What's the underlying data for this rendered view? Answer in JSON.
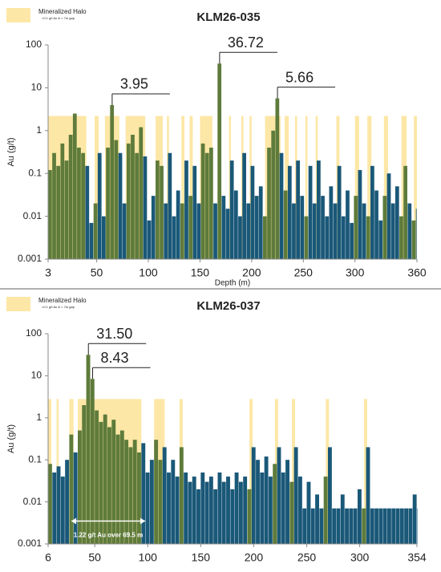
{
  "chart_data": [
    {
      "type": "bar",
      "title": "KLM26-035",
      "y_label": "Au (g/t)",
      "x_label": "Depth (m)",
      "log_y": true,
      "color": "#1a5878",
      "halo": {
        "name": "Mineralized Halo",
        "note": ">0.1 g/t Au & < 7m gap",
        "color": "#fde7a6",
        "bar_color": "#5e7b3b",
        "top": 2.2,
        "intervals": [
          [
            3,
            40
          ],
          [
            48,
            52
          ],
          [
            58,
            72
          ],
          [
            78,
            97
          ],
          [
            107,
            114
          ],
          [
            118,
            120
          ],
          [
            132,
            135
          ],
          [
            140,
            143
          ],
          [
            150,
            162
          ],
          [
            167,
            170
          ],
          [
            178,
            180
          ],
          [
            190,
            192
          ],
          [
            198,
            200
          ],
          [
            213,
            228
          ],
          [
            232,
            236
          ],
          [
            242,
            244
          ],
          [
            252,
            254
          ],
          [
            262,
            264
          ],
          [
            282,
            285
          ],
          [
            300,
            304
          ],
          [
            312,
            316
          ],
          [
            328,
            332
          ],
          [
            345,
            350
          ],
          [
            357,
            360
          ]
        ]
      },
      "xlim": [
        3,
        360
      ],
      "xticks": [
        3,
        50,
        100,
        150,
        200,
        250,
        300,
        360
      ],
      "ylim": [
        0.001,
        100
      ],
      "yticks": [
        0.001,
        0.01,
        0.1,
        1,
        10,
        100
      ],
      "x": [
        3,
        7,
        11,
        15,
        19,
        23,
        27,
        31,
        35,
        39,
        43,
        47,
        51,
        55,
        59,
        63,
        67,
        71,
        75,
        79,
        83,
        87,
        91,
        95,
        99,
        103,
        107,
        111,
        115,
        119,
        123,
        127,
        131,
        135,
        139,
        143,
        147,
        151,
        155,
        159,
        163,
        167,
        171,
        175,
        179,
        183,
        187,
        191,
        195,
        199,
        203,
        207,
        211,
        215,
        219,
        223,
        227,
        231,
        235,
        239,
        243,
        247,
        251,
        255,
        259,
        263,
        267,
        271,
        275,
        279,
        283,
        287,
        291,
        295,
        299,
        303,
        307,
        311,
        315,
        319,
        323,
        327,
        331,
        335,
        339,
        343,
        347,
        351,
        355,
        359
      ],
      "values": [
        0.12,
        0.3,
        0.15,
        0.5,
        0.2,
        0.8,
        2.5,
        0.4,
        0.3,
        0.15,
        0.007,
        0.02,
        0.3,
        0.01,
        0.4,
        3.95,
        0.6,
        0.3,
        0.02,
        0.5,
        0.8,
        0.3,
        1.2,
        0.25,
        0.008,
        0.03,
        0.2,
        0.15,
        0.02,
        0.3,
        0.01,
        0.04,
        0.02,
        0.2,
        0.03,
        0.15,
        0.02,
        0.5,
        0.3,
        0.4,
        0.02,
        36.72,
        0.03,
        0.015,
        0.2,
        0.04,
        0.01,
        0.3,
        0.02,
        0.15,
        0.03,
        0.05,
        0.01,
        0.4,
        1.0,
        5.66,
        0.3,
        0.04,
        0.15,
        0.02,
        0.2,
        0.03,
        0.01,
        0.15,
        0.02,
        0.2,
        0.03,
        0.01,
        0.05,
        0.02,
        0.15,
        0.01,
        0.04,
        0.007,
        0.03,
        0.12,
        0.02,
        0.01,
        0.15,
        0.04,
        0.008,
        0.03,
        0.1,
        0.02,
        0.05,
        0.01,
        0.15,
        0.02,
        0.008,
        0.015
      ],
      "value_labels": [
        null,
        null,
        null,
        null,
        null,
        null,
        null,
        null,
        null,
        null,
        null,
        null,
        null,
        null,
        null,
        "3.95",
        null,
        null,
        null,
        null,
        null,
        null,
        null,
        null,
        null,
        null,
        null,
        null,
        null,
        null,
        null,
        null,
        null,
        null,
        null,
        null,
        null,
        null,
        null,
        null,
        null,
        "36.72",
        null,
        null,
        null,
        null,
        null,
        null,
        null,
        null,
        null,
        null,
        null,
        null,
        null,
        "5.66",
        null,
        null,
        null,
        null,
        null,
        null,
        null,
        null,
        null,
        null,
        null,
        null,
        null,
        null,
        null,
        null,
        null,
        null,
        null,
        null,
        null,
        null,
        null,
        null,
        null,
        null,
        null,
        null,
        null,
        null,
        null,
        null,
        null,
        null
      ]
    },
    {
      "type": "bar",
      "title": "KLM26-037",
      "y_label": "Au (g/t)",
      "log_y": true,
      "color": "#1a5878",
      "halo": {
        "name": "Mineralized Halo",
        "note": ">0.1 g/t Au & < 7m gap",
        "color": "#fde7a6",
        "bar_color": "#5e7b3b",
        "top": 2.8,
        "intervals": [
          [
            6,
            9
          ],
          [
            14,
            16
          ],
          [
            26,
            30
          ],
          [
            34,
            94
          ],
          [
            106,
            116
          ],
          [
            130,
            133
          ],
          [
            196,
            199
          ],
          [
            220,
            223
          ],
          [
            236,
            239
          ],
          [
            268,
            271
          ],
          [
            304,
            307
          ]
        ]
      },
      "xlim": [
        6,
        354
      ],
      "xticks": [
        6,
        50,
        100,
        150,
        200,
        250,
        300,
        354
      ],
      "ylim": [
        0.001,
        100
      ],
      "yticks": [
        0.001,
        0.01,
        0.1,
        1,
        10,
        100
      ],
      "x": [
        6,
        10,
        14,
        18,
        22,
        26,
        30,
        34,
        38,
        42,
        46,
        50,
        54,
        58,
        62,
        66,
        70,
        74,
        78,
        82,
        86,
        90,
        94,
        98,
        102,
        106,
        110,
        114,
        118,
        122,
        126,
        130,
        134,
        138,
        142,
        146,
        150,
        154,
        158,
        162,
        166,
        170,
        174,
        178,
        182,
        186,
        190,
        194,
        198,
        202,
        206,
        210,
        214,
        218,
        222,
        226,
        230,
        234,
        238,
        242,
        246,
        250,
        254,
        258,
        262,
        266,
        270,
        274,
        278,
        282,
        286,
        290,
        294,
        298,
        302,
        306,
        310,
        314,
        318,
        322,
        326,
        330,
        334,
        338,
        342,
        346,
        350,
        354
      ],
      "values": [
        0.08,
        0.05,
        0.07,
        0.04,
        0.1,
        0.4,
        0.15,
        0.5,
        2.0,
        31.5,
        8.43,
        1.5,
        0.8,
        1.2,
        0.6,
        0.9,
        0.4,
        0.5,
        0.3,
        0.2,
        0.3,
        0.15,
        0.25,
        0.05,
        0.1,
        0.3,
        0.1,
        0.2,
        0.05,
        0.1,
        0.04,
        0.2,
        0.05,
        0.03,
        0.04,
        0.02,
        0.05,
        0.03,
        0.04,
        0.02,
        0.05,
        0.03,
        0.04,
        0.02,
        0.05,
        0.03,
        0.04,
        0.02,
        0.2,
        0.1,
        0.05,
        0.12,
        0.04,
        0.08,
        0.2,
        0.05,
        0.1,
        0.03,
        0.2,
        0.04,
        0.007,
        0.03,
        0.007,
        0.015,
        0.007,
        0.04,
        0.2,
        0.007,
        0.007,
        0.015,
        0.007,
        0.007,
        0.007,
        0.02,
        0.007,
        0.2,
        0.007,
        0.007,
        0.007,
        0.007,
        0.007,
        0.007,
        0.007,
        0.007,
        0.007,
        0.007,
        0.015,
        0.007
      ],
      "value_labels": [
        null,
        null,
        null,
        null,
        null,
        null,
        null,
        null,
        null,
        "31.50",
        "8.43",
        null,
        null,
        null,
        null,
        null,
        null,
        null,
        null,
        null,
        null,
        null,
        null,
        null,
        null,
        null,
        null,
        null,
        null,
        null,
        null,
        null,
        null,
        null,
        null,
        null,
        null,
        null,
        null,
        null,
        null,
        null,
        null,
        null,
        null,
        null,
        null,
        null,
        null,
        null,
        null,
        null,
        null,
        null,
        null,
        null,
        null,
        null,
        null,
        null,
        null,
        null,
        null,
        null,
        null,
        null,
        null,
        null,
        null,
        null,
        null,
        null,
        null,
        null,
        null,
        null,
        null,
        null,
        null,
        null,
        null,
        null,
        null,
        null,
        null,
        null,
        null,
        null
      ],
      "annotations": [
        {
          "text": "1.22 g/t Au over 69.5 m",
          "x": [
            28,
            97.5
          ]
        }
      ]
    }
  ]
}
